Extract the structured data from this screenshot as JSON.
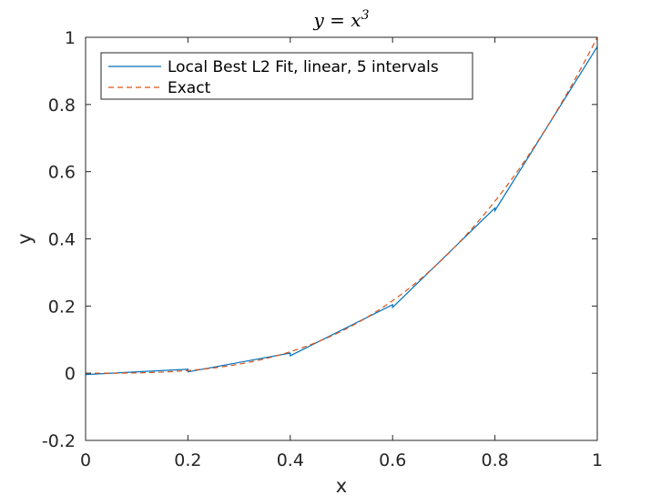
{
  "chart_data": {
    "type": "line",
    "title": "y = x",
    "title_superscript": "3",
    "xlabel": "x",
    "ylabel": "y",
    "xlim": [
      0,
      1
    ],
    "ylim": [
      -0.2,
      1
    ],
    "xticks": [
      0,
      0.2,
      0.4,
      0.6,
      0.8,
      1
    ],
    "xtick_labels": [
      "0",
      "0.2",
      "0.4",
      "0.6",
      "0.8",
      "1"
    ],
    "yticks": [
      -0.2,
      0,
      0.2,
      0.4,
      0.6,
      0.8,
      1
    ],
    "ytick_labels": [
      "-0.2",
      "0",
      "0.2",
      "0.4",
      "0.6",
      "0.8",
      "1"
    ],
    "grid": false,
    "legend_position": "top-left",
    "series": [
      {
        "name": "Local Best L2 Fit, linear, 5 intervals",
        "color": "#0072bd",
        "style": "solid",
        "x": [
          0,
          0.2,
          0.2,
          0.4,
          0.4,
          0.6,
          0.6,
          0.8,
          0.8,
          1
        ],
        "y": [
          -0.004,
          0.012,
          0.004,
          0.06,
          0.052,
          0.204,
          0.196,
          0.492,
          0.484,
          0.972
        ]
      },
      {
        "name": "Exact",
        "color": "#d95319",
        "style": "dashed",
        "function": "x^3"
      }
    ]
  }
}
